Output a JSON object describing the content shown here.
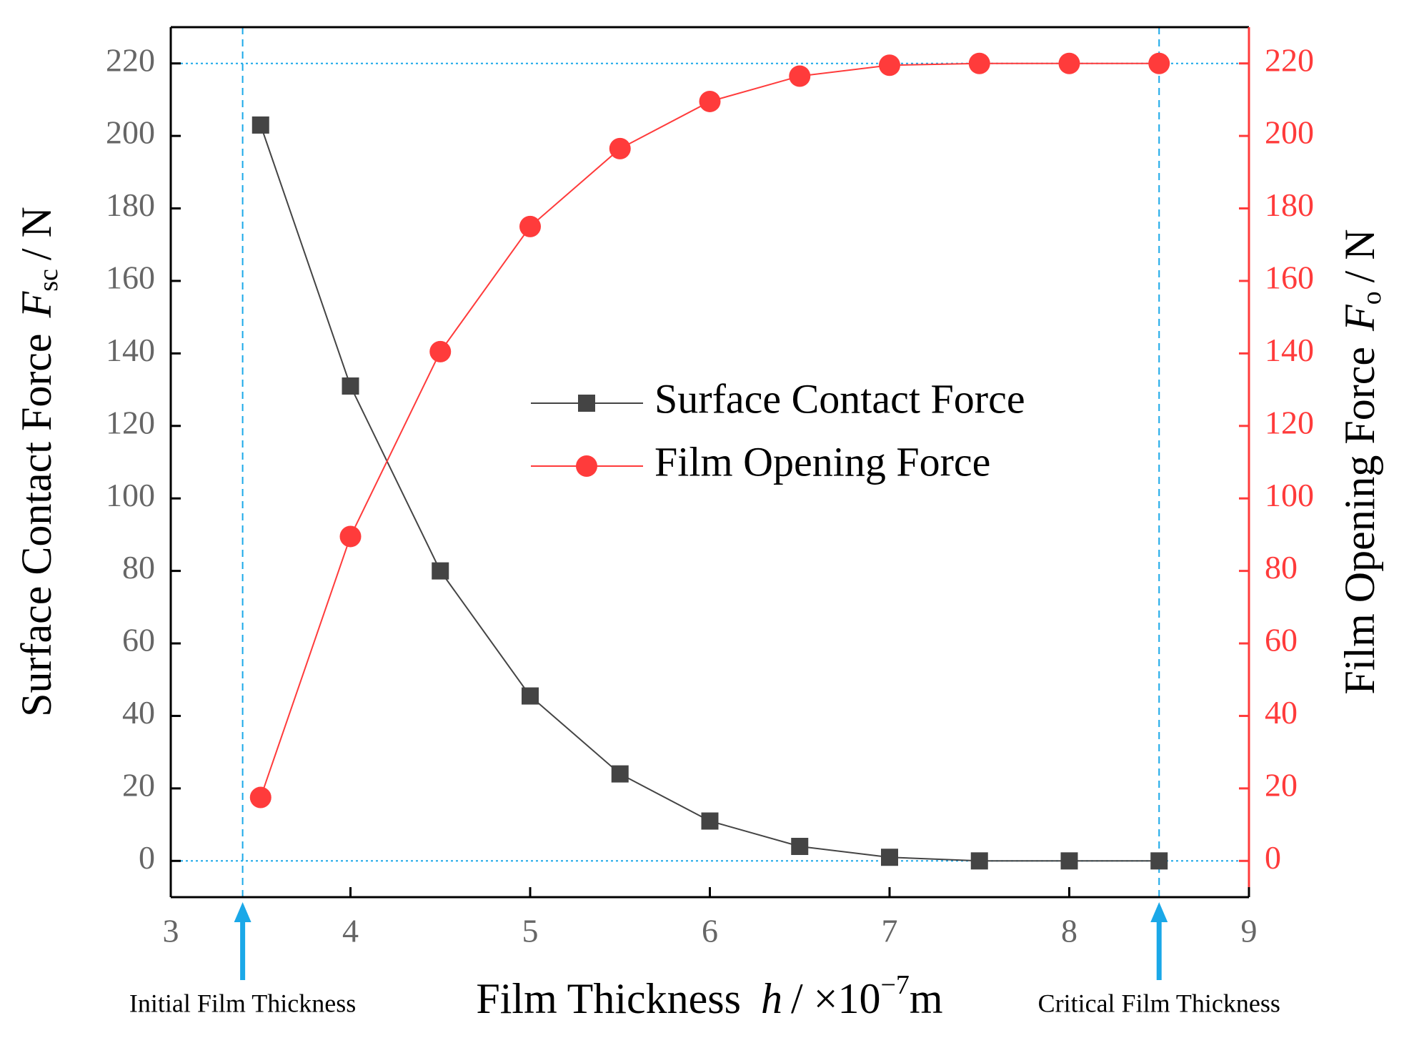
{
  "chart_data": {
    "type": "line",
    "x": [
      3.5,
      4,
      4.5,
      5,
      5.5,
      6,
      6.5,
      7,
      7.5,
      8,
      8.5
    ],
    "series": [
      {
        "name": "Surface Contact Force",
        "color": "#444444",
        "marker": "square",
        "values": [
          203,
          131,
          80,
          45.5,
          24,
          11,
          4,
          1,
          0,
          0,
          0
        ]
      },
      {
        "name": "Film Opening Force",
        "color": "#ff3b3b",
        "marker": "circle",
        "axis": "y2",
        "values": [
          17.5,
          89.5,
          140.5,
          175,
          196.5,
          209.5,
          216.5,
          219.5,
          220,
          220,
          220
        ]
      }
    ],
    "xlim": [
      3,
      9
    ],
    "xticks": [
      3,
      4,
      5,
      6,
      7,
      8,
      9
    ],
    "ylim": [
      -10,
      230
    ],
    "yticks": [
      0,
      20,
      40,
      60,
      80,
      100,
      120,
      140,
      160,
      180,
      200,
      220
    ],
    "y2lim": [
      -10,
      230
    ],
    "y2ticks": [
      0,
      20,
      40,
      60,
      80,
      100,
      120,
      140,
      160,
      180,
      200,
      220
    ],
    "x_label": {
      "text": "Film Thickness",
      "symbol": "h",
      "unit": "/ ×10",
      "exponent": "−7",
      "unit_end": "m"
    },
    "y_label": {
      "text": "Surface Contact Force",
      "symbol": "F",
      "subscript": "sc",
      "unit": "/ N"
    },
    "y2_label": {
      "text": "Film Opening Force",
      "symbol": "F",
      "subscript": "o",
      "unit": "/ N"
    },
    "reference_lines": {
      "x": [
        3.4,
        8.5
      ],
      "y": [
        0,
        220
      ],
      "color": "#1aa8e8"
    },
    "annotations": [
      {
        "text": "Initial Film Thickness",
        "x": 3.4
      },
      {
        "text": "Critical Film Thickness",
        "x": 8.5
      }
    ],
    "legend": "center"
  }
}
